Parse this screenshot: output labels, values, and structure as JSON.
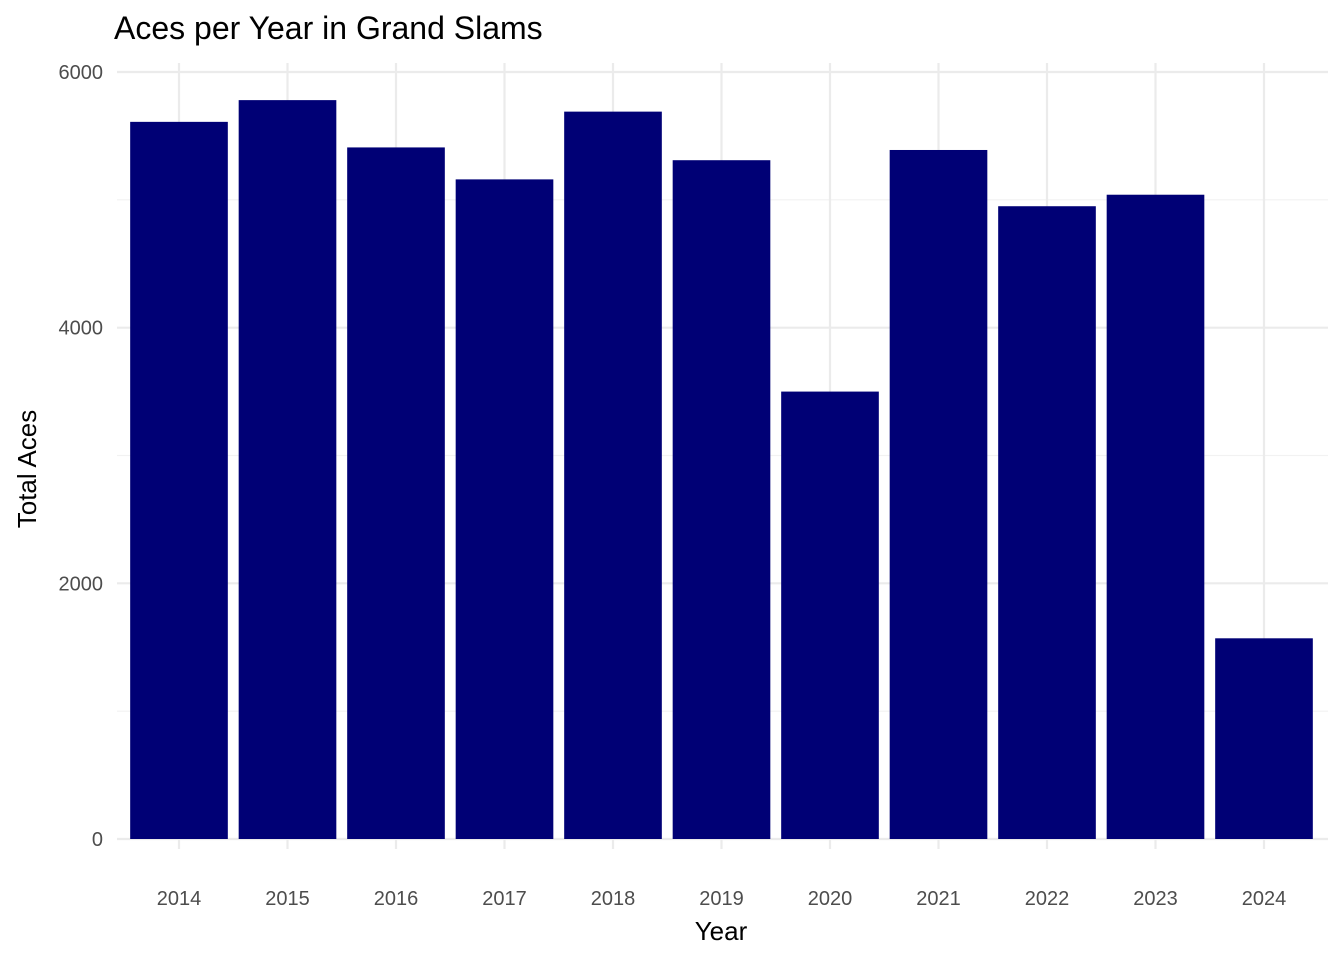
{
  "chart_data": {
    "type": "bar",
    "title": "Aces per Year in Grand Slams",
    "xlabel": "Year",
    "ylabel": "Total Aces",
    "categories": [
      "2014",
      "2015",
      "2016",
      "2017",
      "2018",
      "2019",
      "2020",
      "2021",
      "2022",
      "2023",
      "2024"
    ],
    "values": [
      5610,
      5780,
      5410,
      5160,
      5690,
      5310,
      3500,
      5390,
      4950,
      5040,
      1570
    ],
    "ylim": [
      0,
      6000
    ],
    "yticks": [
      0,
      2000,
      4000,
      6000
    ],
    "bar_color": "#000075",
    "grid": true,
    "legend": "none"
  }
}
